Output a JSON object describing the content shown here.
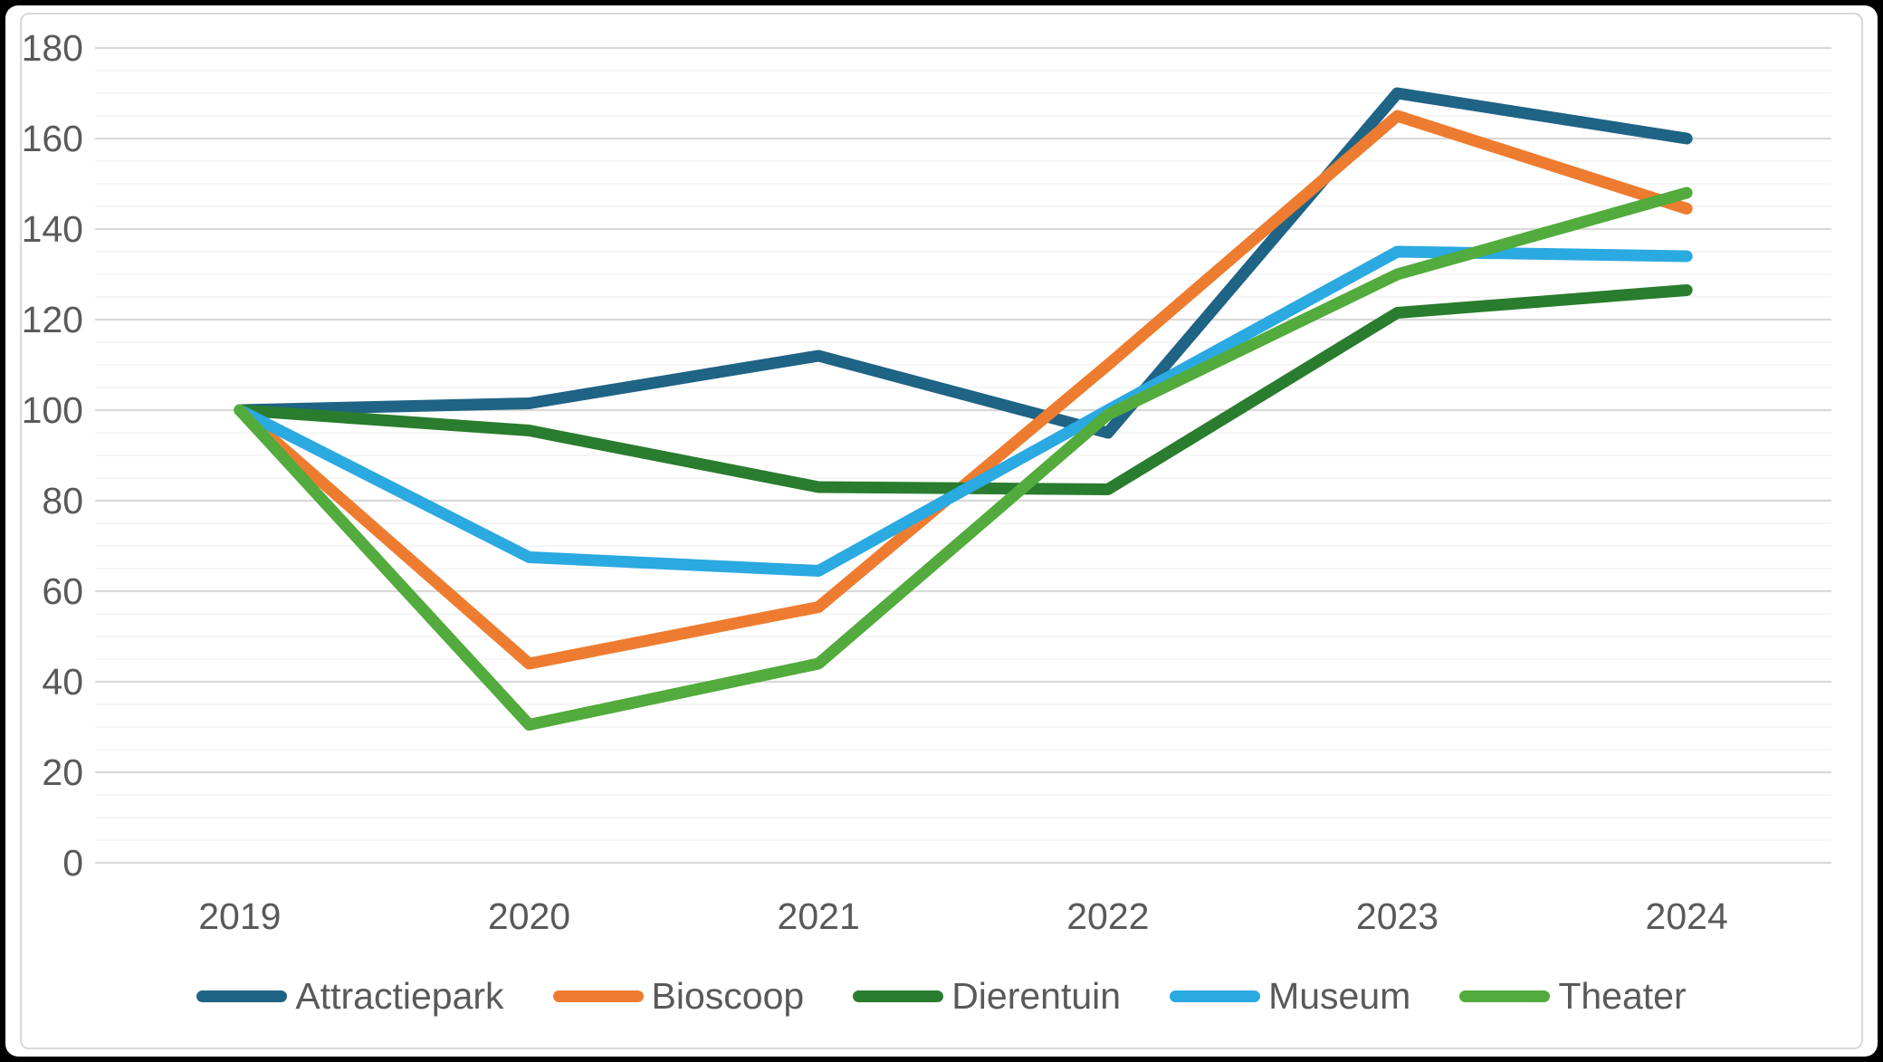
{
  "colors": {
    "frame": "#000000",
    "panel_background": "#FFFFFF",
    "panel_border": "#D9D9D9",
    "major_gridline": "#D9D9D9",
    "minor_gridline": "#F2F2F2",
    "axis_text": "#595959",
    "legend_text": "#595959"
  },
  "chart_data": {
    "type": "line",
    "title": "",
    "xlabel": "",
    "ylabel": "",
    "categories": [
      "2019",
      "2020",
      "2021",
      "2022",
      "2023",
      "2024"
    ],
    "series": [
      {
        "name": "Attractiepark",
        "color": "#1F6385",
        "values": [
          100,
          101.5,
          112,
          95,
          170,
          160
        ]
      },
      {
        "name": "Bioscoop",
        "color": "#EE7C30",
        "values": [
          100,
          44,
          56.5,
          110,
          165,
          144.5
        ]
      },
      {
        "name": "Dierentuin",
        "color": "#2A7C2E",
        "values": [
          100,
          95.5,
          83,
          82.5,
          121.5,
          126.5
        ]
      },
      {
        "name": "Museum",
        "color": "#2BA9E1",
        "values": [
          100,
          67.5,
          64.5,
          100,
          135,
          134
        ]
      },
      {
        "name": "Theater",
        "color": "#52AB3C",
        "values": [
          100,
          30.5,
          44,
          99,
          130,
          148
        ]
      }
    ],
    "y_axis": {
      "min": 0,
      "max": 180,
      "major_step": 20,
      "minor_step": 5,
      "tick_labels": [
        "0",
        "20",
        "40",
        "60",
        "80",
        "100",
        "120",
        "140",
        "160",
        "180"
      ]
    },
    "grid": "horizontal",
    "legend_position": "bottom"
  }
}
